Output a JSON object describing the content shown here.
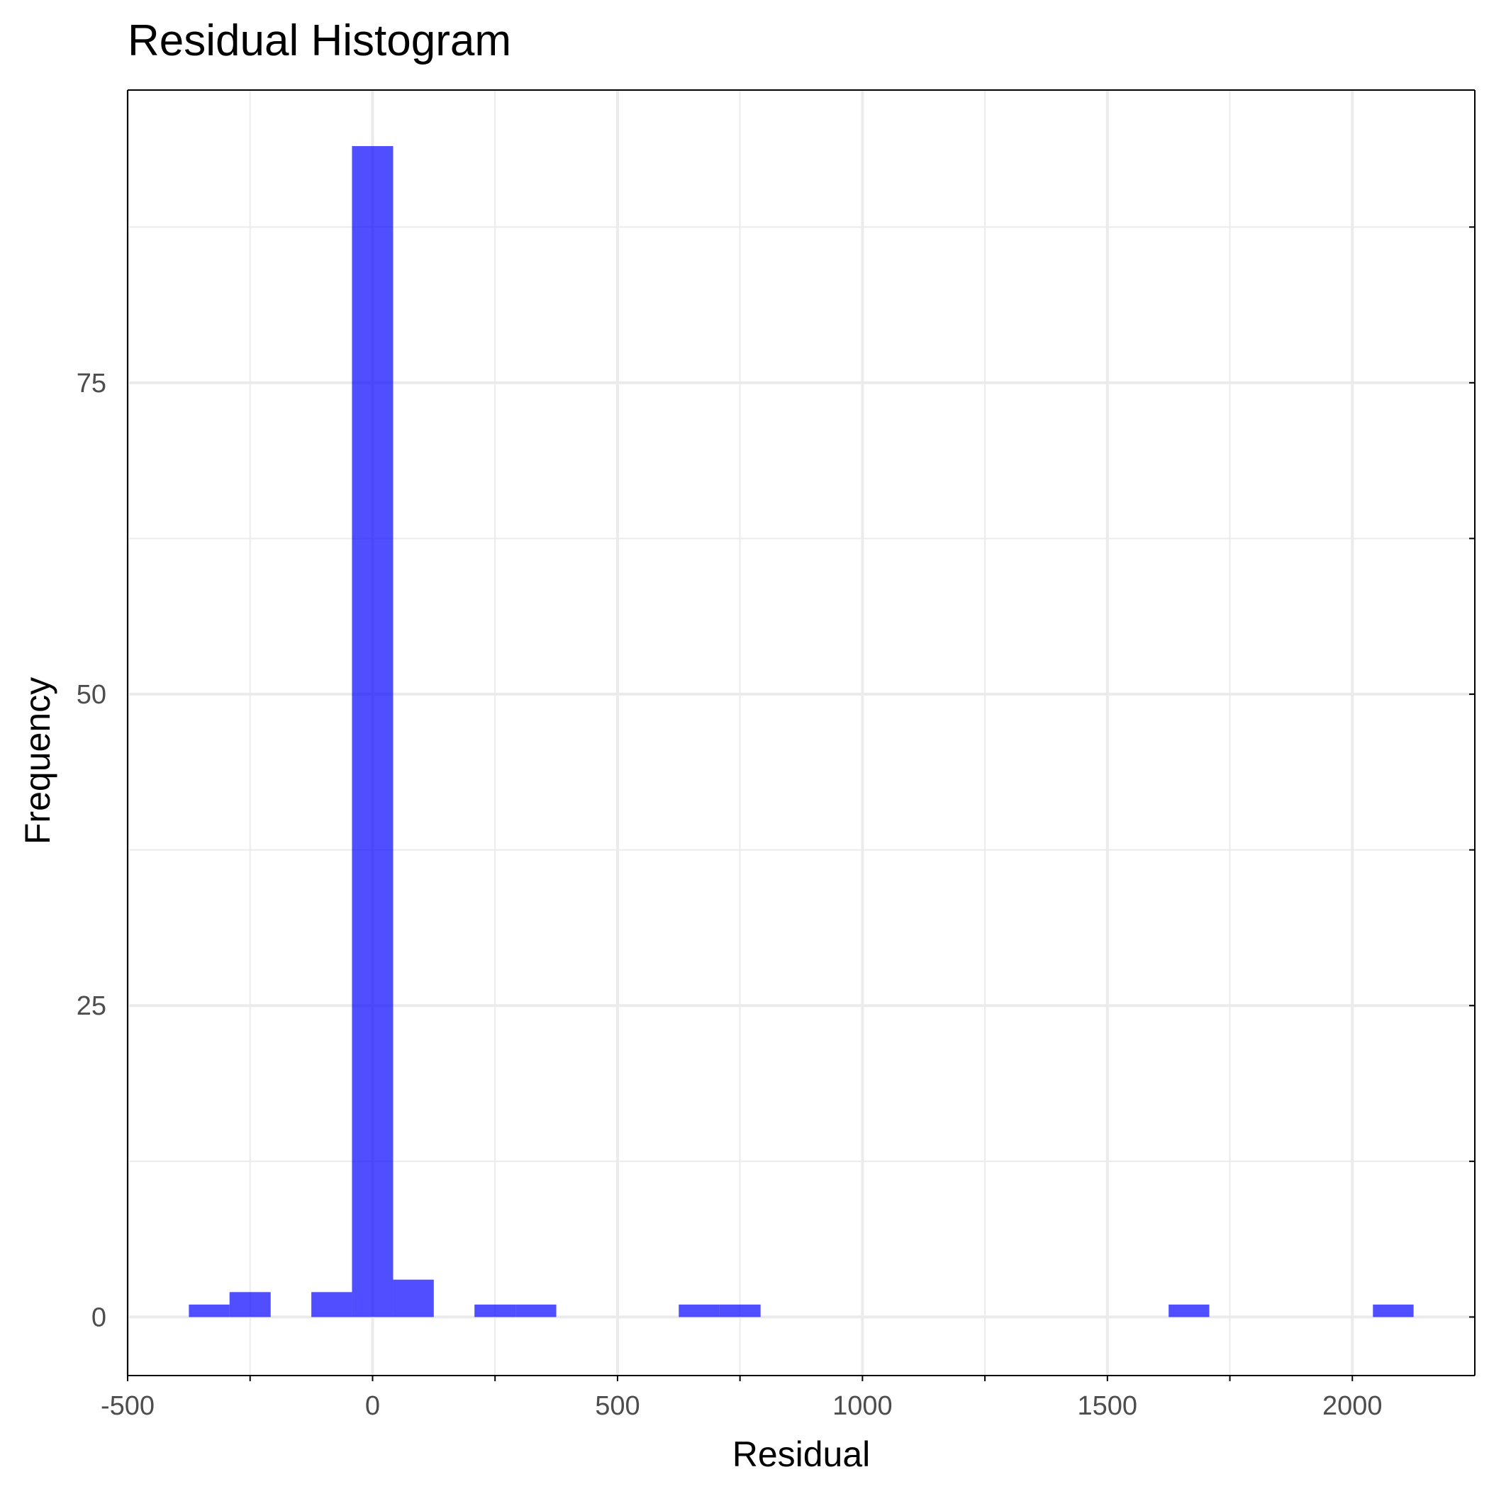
{
  "chart_data": {
    "type": "bar",
    "title": "Residual Histogram",
    "xlabel": "Residual",
    "ylabel": "Frequency",
    "xlim": [
      -500,
      2250
    ],
    "ylim": [
      -4.7,
      98.5
    ],
    "x_ticks": [
      -500,
      0,
      500,
      1000,
      1500,
      2000
    ],
    "x_tick_labels": [
      "-500",
      "0",
      "500",
      "1000",
      "1500",
      "2000"
    ],
    "x_minor_ticks": [
      -250,
      250,
      750,
      1250,
      1750
    ],
    "y_ticks": [
      0,
      25,
      50,
      75
    ],
    "y_tick_labels": [
      "0",
      "25",
      "50",
      "75"
    ],
    "y_minor_ticks": [
      12.5,
      37.5,
      62.5,
      87.5
    ],
    "bin_width": 83.3,
    "bins": [
      {
        "x0": -375,
        "x1": -292,
        "count": 1
      },
      {
        "x0": -292,
        "x1": -208,
        "count": 2
      },
      {
        "x0": -125,
        "x1": -42,
        "count": 2
      },
      {
        "x0": -42,
        "x1": 42,
        "count": 94
      },
      {
        "x0": 42,
        "x1": 125,
        "count": 3
      },
      {
        "x0": 208,
        "x1": 292,
        "count": 1
      },
      {
        "x0": 292,
        "x1": 375,
        "count": 1
      },
      {
        "x0": 625,
        "x1": 708,
        "count": 1
      },
      {
        "x0": 708,
        "x1": 792,
        "count": 1
      },
      {
        "x0": 1625,
        "x1": 1708,
        "count": 1
      },
      {
        "x0": 2042,
        "x1": 2125,
        "count": 1
      }
    ],
    "bar_color": "#0000ff",
    "bar_opacity": 0.69,
    "grid": true,
    "legend": false
  }
}
